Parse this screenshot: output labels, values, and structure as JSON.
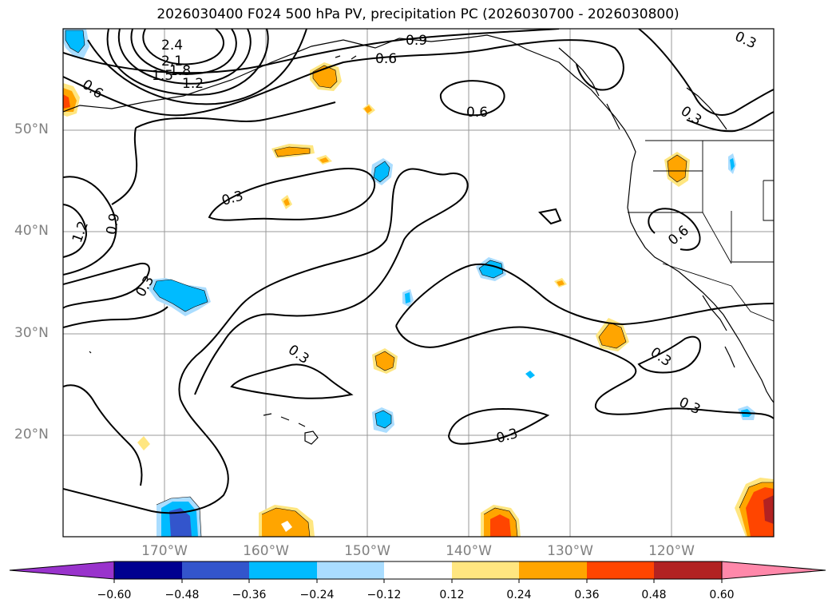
{
  "title": "2026030400 F024 500 hPa PV, precipitation PC (2026030700 - 2026030800)",
  "lat_labels": [
    "50°N",
    "40°N",
    "30°N",
    "20°N"
  ],
  "lon_labels": [
    "170°W",
    "160°W",
    "150°W",
    "140°W",
    "130°W",
    "120°W"
  ],
  "contour_labels": [
    "2.4",
    "2.1",
    "1.8",
    "1.5",
    "1.2",
    "0.9",
    "0.6",
    "0.6",
    "0.6",
    "0.3",
    "0.3",
    "1.2",
    "0.9",
    "0.3",
    "0.3",
    "0.6",
    "0.3",
    "0.3",
    "0.3",
    "0.3"
  ],
  "colorbar": {
    "tick_labels": [
      "−0.60",
      "−0.48",
      "−0.36",
      "−0.24",
      "−0.12",
      "0.12",
      "0.24",
      "0.36",
      "0.48",
      "0.60"
    ],
    "colors": [
      "#9933cc",
      "#000090",
      "#3355cc",
      "#00bbff",
      "#aaddff",
      "#ffffff",
      "#ffe680",
      "#ffa500",
      "#ff4500",
      "#b22222",
      "#ff88aa"
    ]
  },
  "colors": {
    "contour": "#000000",
    "grid": "#999999",
    "axis_label": "#808080"
  }
}
